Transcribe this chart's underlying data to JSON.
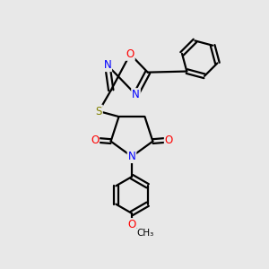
{
  "bg_color": "#e8e8e8",
  "bond_color": "#000000",
  "atom_colors": {
    "N": "#0000ff",
    "O": "#ff0000",
    "S": "#808000",
    "C": "#000000"
  },
  "line_width": 1.6,
  "font_size": 8.5,
  "figsize": [
    3.0,
    3.0
  ],
  "dpi": 100
}
